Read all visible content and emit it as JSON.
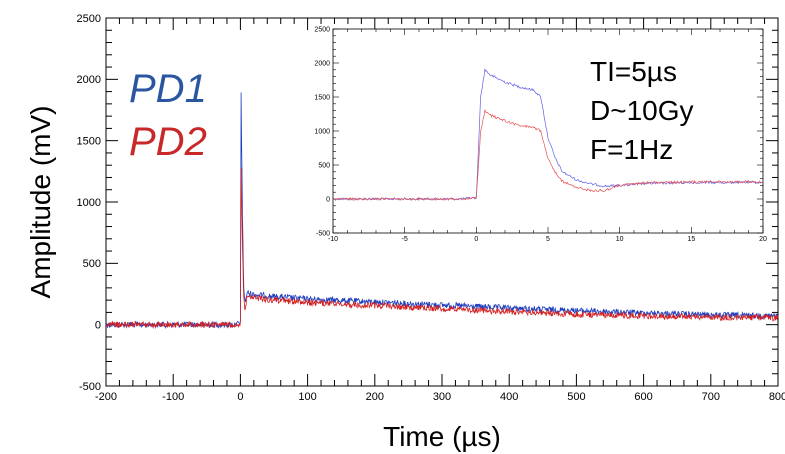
{
  "chart_data": [
    {
      "id": "main",
      "type": "line",
      "title": "",
      "xlabel": "Time (µs)",
      "ylabel": "Amplitude (mV)",
      "xlim": [
        -200,
        800
      ],
      "ylim": [
        -500,
        2500
      ],
      "xticks": [
        -200,
        -100,
        0,
        100,
        200,
        300,
        400,
        500,
        600,
        700,
        800
      ],
      "yticks": [
        -500,
        0,
        500,
        1000,
        1500,
        2000,
        2500
      ],
      "grid": false,
      "legend_position": "top-left",
      "series": [
        {
          "name": "PD1",
          "color": "#1f3fbf",
          "x": [
            -200,
            -100,
            -10,
            0,
            1,
            3,
            5,
            7,
            10,
            20,
            50,
            100,
            200,
            300,
            400,
            500,
            600,
            700,
            800
          ],
          "y": [
            0,
            0,
            0,
            10,
            1900,
            900,
            300,
            180,
            260,
            245,
            230,
            210,
            185,
            160,
            135,
            115,
            95,
            80,
            70
          ]
        },
        {
          "name": "PD2",
          "color": "#d42020",
          "x": [
            -200,
            -100,
            -10,
            0,
            1,
            3,
            5,
            7,
            10,
            20,
            50,
            100,
            200,
            300,
            400,
            500,
            600,
            700,
            800
          ],
          "y": [
            0,
            0,
            0,
            10,
            1300,
            650,
            200,
            120,
            230,
            220,
            200,
            180,
            155,
            130,
            105,
            85,
            70,
            60,
            55
          ]
        }
      ]
    },
    {
      "id": "inset",
      "type": "line",
      "xlim": [
        -10,
        20
      ],
      "ylim": [
        -500,
        2500
      ],
      "xticks": [
        -10,
        -5,
        0,
        5,
        10,
        15,
        20
      ],
      "yticks": [
        -500,
        0,
        500,
        1000,
        1500,
        2000,
        2500
      ],
      "series": [
        {
          "name": "PD1",
          "color": "#6060e8",
          "x": [
            -10,
            -5,
            -1,
            0,
            0.3,
            0.6,
            1,
            2,
            3,
            4,
            4.5,
            5,
            5.5,
            6,
            7,
            8,
            9,
            10,
            12,
            15,
            20
          ],
          "y": [
            0,
            0,
            0,
            20,
            1500,
            1900,
            1820,
            1720,
            1650,
            1600,
            1500,
            900,
            600,
            400,
            280,
            220,
            190,
            200,
            230,
            240,
            245
          ]
        },
        {
          "name": "PD2",
          "color": "#e85050",
          "x": [
            -10,
            -5,
            -1,
            0,
            0.3,
            0.6,
            1,
            2,
            3,
            4,
            4.5,
            5,
            5.5,
            6,
            7,
            8,
            9,
            10,
            12,
            15,
            20
          ],
          "y": [
            0,
            0,
            0,
            15,
            1000,
            1300,
            1230,
            1150,
            1080,
            1050,
            1000,
            600,
            400,
            260,
            170,
            120,
            130,
            200,
            240,
            250,
            255
          ]
        }
      ]
    }
  ],
  "legend": {
    "pd1": "PD1",
    "pd2": "PD2",
    "pd1_color": "#2a55a0",
    "pd2_color": "#c82828"
  },
  "annotations": {
    "line1": "TI=5µs",
    "line2": "D~10Gy",
    "line3": "F=1Hz"
  }
}
